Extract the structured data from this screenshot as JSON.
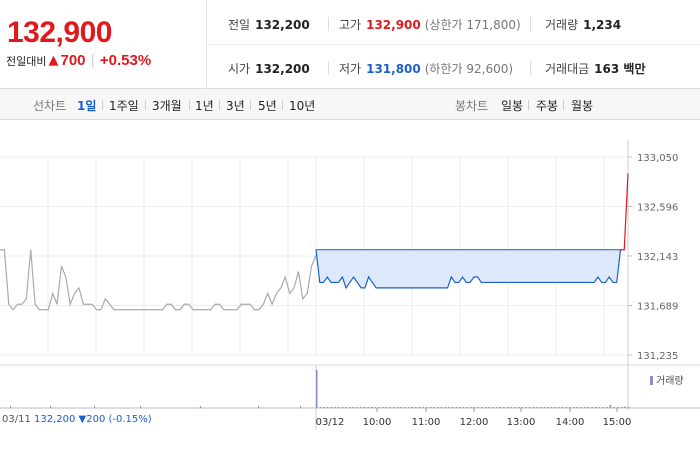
{
  "quote": {
    "price": "132,900",
    "change_label": "전일대비",
    "change_arrow": "▲",
    "change_amount": "700",
    "change_percent": "+0.53%"
  },
  "stats": {
    "prev_close": {
      "label": "전일",
      "value": "132,200"
    },
    "high": {
      "label": "고가",
      "value": "132,900",
      "sub": "(상한가 171,800)"
    },
    "volume": {
      "label": "거래량",
      "value": "1,234"
    },
    "open": {
      "label": "시가",
      "value": "132,200"
    },
    "low": {
      "label": "저가",
      "value": "131,800",
      "sub": "(하한가 92,600)"
    },
    "trade_value": {
      "label": "거래대금",
      "value": "163 백만"
    }
  },
  "period_bar": {
    "line_label": "선차트",
    "line_options": [
      "1일",
      "1주일",
      "3개월",
      "1년",
      "3년",
      "5년",
      "10년"
    ],
    "line_active": "1일",
    "candle_label": "봉차트",
    "candle_options": [
      "일봉",
      "주봉",
      "월봉"
    ]
  },
  "colors": {
    "up": "#e0191e",
    "down": "#1a5fd0",
    "prev_day_line": "#aaaaaa",
    "area_fill": "#dde9fb",
    "volume": "#8a8fcf"
  },
  "chart_data": {
    "type": "line",
    "y_ticks": [
      "133,050",
      "132,596",
      "132,143",
      "131,689",
      "131,235"
    ],
    "ylim": [
      131235,
      133050
    ],
    "x_ticks": [
      "03/12",
      "10:00",
      "11:00",
      "12:00",
      "13:00",
      "14:00",
      "15:00"
    ],
    "prev_day_date": "03/11",
    "prev_day_close": "132,200",
    "prev_day_change": "▼200 (-0.15%)",
    "legend": "거래량",
    "prev_day_series": [
      132200,
      132200,
      131700,
      131650,
      131700,
      131700,
      131750,
      132200,
      131700,
      131650,
      131650,
      131650,
      131800,
      131700,
      132050,
      131950,
      131700,
      131800,
      131850,
      131700,
      131700,
      131700,
      131650,
      131650,
      131750,
      131700,
      131650,
      131650,
      131650,
      131650,
      131650,
      131650,
      131650,
      131650,
      131650,
      131650,
      131650,
      131650,
      131700,
      131700,
      131650,
      131650,
      131700,
      131700,
      131650,
      131650,
      131650,
      131650,
      131650,
      131700,
      131700,
      131650,
      131650,
      131650,
      131650,
      131700,
      131700,
      131700,
      131650,
      131650,
      131700,
      131800,
      131700,
      131800,
      131850,
      131950,
      131800,
      131850,
      132000,
      131750,
      131800,
      132050,
      132150
    ],
    "today_series": [
      132200,
      131900,
      131900,
      131950,
      131900,
      131900,
      131900,
      131950,
      131850,
      131900,
      131950,
      131900,
      131850,
      131850,
      131950,
      131900,
      131850,
      131850,
      131850,
      131850,
      131850,
      131850,
      131850,
      131850,
      131850,
      131850,
      131850,
      131850,
      131850,
      131850,
      131850,
      131850,
      131850,
      131850,
      131850,
      131850,
      131950,
      131900,
      131900,
      131950,
      131900,
      131900,
      131950,
      131950,
      131900,
      131900,
      131900,
      131900,
      131900,
      131900,
      131900,
      131900,
      131900,
      131900,
      131900,
      131900,
      131900,
      131900,
      131900,
      131900,
      131900,
      131900,
      131900,
      131900,
      131900,
      131900,
      131900,
      131900,
      131900,
      131900,
      131900,
      131900,
      131900,
      131900,
      131900,
      131950,
      131900,
      131900,
      131950,
      131900,
      131900,
      132200,
      132200,
      132900
    ],
    "today_volume": [
      700,
      5,
      5,
      5,
      5,
      5,
      5,
      5,
      5,
      5,
      5,
      5,
      5,
      5,
      5,
      5,
      5,
      5,
      5,
      5,
      5,
      5,
      5,
      5,
      5,
      5,
      5,
      5,
      5,
      5,
      5,
      5,
      5,
      5,
      5,
      5,
      5,
      5,
      5,
      5,
      5,
      5,
      5,
      5,
      5,
      5,
      5,
      5,
      5,
      5,
      5,
      5,
      5,
      5,
      5,
      5,
      5,
      5,
      5,
      5,
      5,
      5,
      5,
      5,
      5,
      5,
      5,
      5,
      5,
      5,
      5,
      5,
      5,
      5,
      5,
      5,
      5,
      5,
      5,
      5,
      60,
      15,
      10,
      5,
      30,
      5
    ]
  }
}
